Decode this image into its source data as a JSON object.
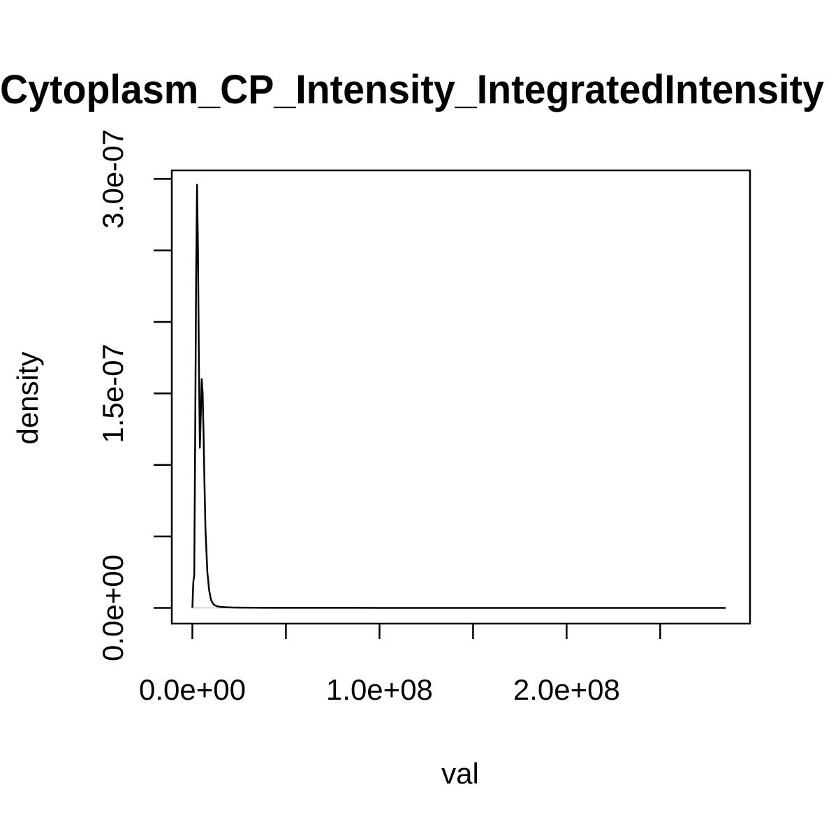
{
  "chart_data": {
    "type": "line",
    "title": "Cytoplasm_CP_Intensity_IntegratedIntensity",
    "xlabel": "val",
    "ylabel": "density",
    "xlim": [
      -11000000,
      298000000
    ],
    "ylim": [
      -1.1e-08,
      3.06e-07
    ],
    "x_ticks": [
      0,
      50000000,
      100000000,
      150000000,
      200000000,
      250000000
    ],
    "x_tick_labels": [
      "0.0e+00",
      "",
      "1.0e+08",
      "",
      "2.0e+08",
      ""
    ],
    "y_ticks": [
      0,
      5e-08,
      1e-07,
      1.5e-07,
      2e-07,
      2.5e-07,
      3e-07
    ],
    "y_tick_labels": [
      "0.0e+00",
      "",
      "",
      "1.5e-07",
      "",
      "",
      "3.0e-07"
    ],
    "grid": false,
    "legend": "none",
    "baseline": 0,
    "series": [
      {
        "x": [
          0,
          500000,
          1000000,
          1500000,
          2000000,
          2500000,
          3000000,
          3500000,
          4000000,
          4500000,
          5000000,
          5500000,
          6000000,
          6500000,
          7000000,
          8000000,
          9000000,
          10000000,
          11000000,
          12000000,
          13000000,
          15000000,
          18000000,
          22000000,
          28000000,
          40000000,
          60000000,
          100000000,
          150000000,
          200000000,
          250000000,
          285000000
        ],
        "y": [
          0,
          1.8e-08,
          2.3e-08,
          1.2e-07,
          2.3e-07,
          2.96e-07,
          2.5e-07,
          1.7e-07,
          1.12e-07,
          1.35e-07,
          1.6e-07,
          1.5e-07,
          1.2e-07,
          8.5e-08,
          5.5e-08,
          2.5e-08,
          1.2e-08,
          5.5e-09,
          3e-09,
          1.8e-09,
          1.2e-09,
          7e-10,
          4e-10,
          2.5e-10,
          1.5e-10,
          8e-11,
          4e-11,
          2e-11,
          1e-11,
          5e-12,
          2e-12,
          0
        ]
      }
    ]
  }
}
